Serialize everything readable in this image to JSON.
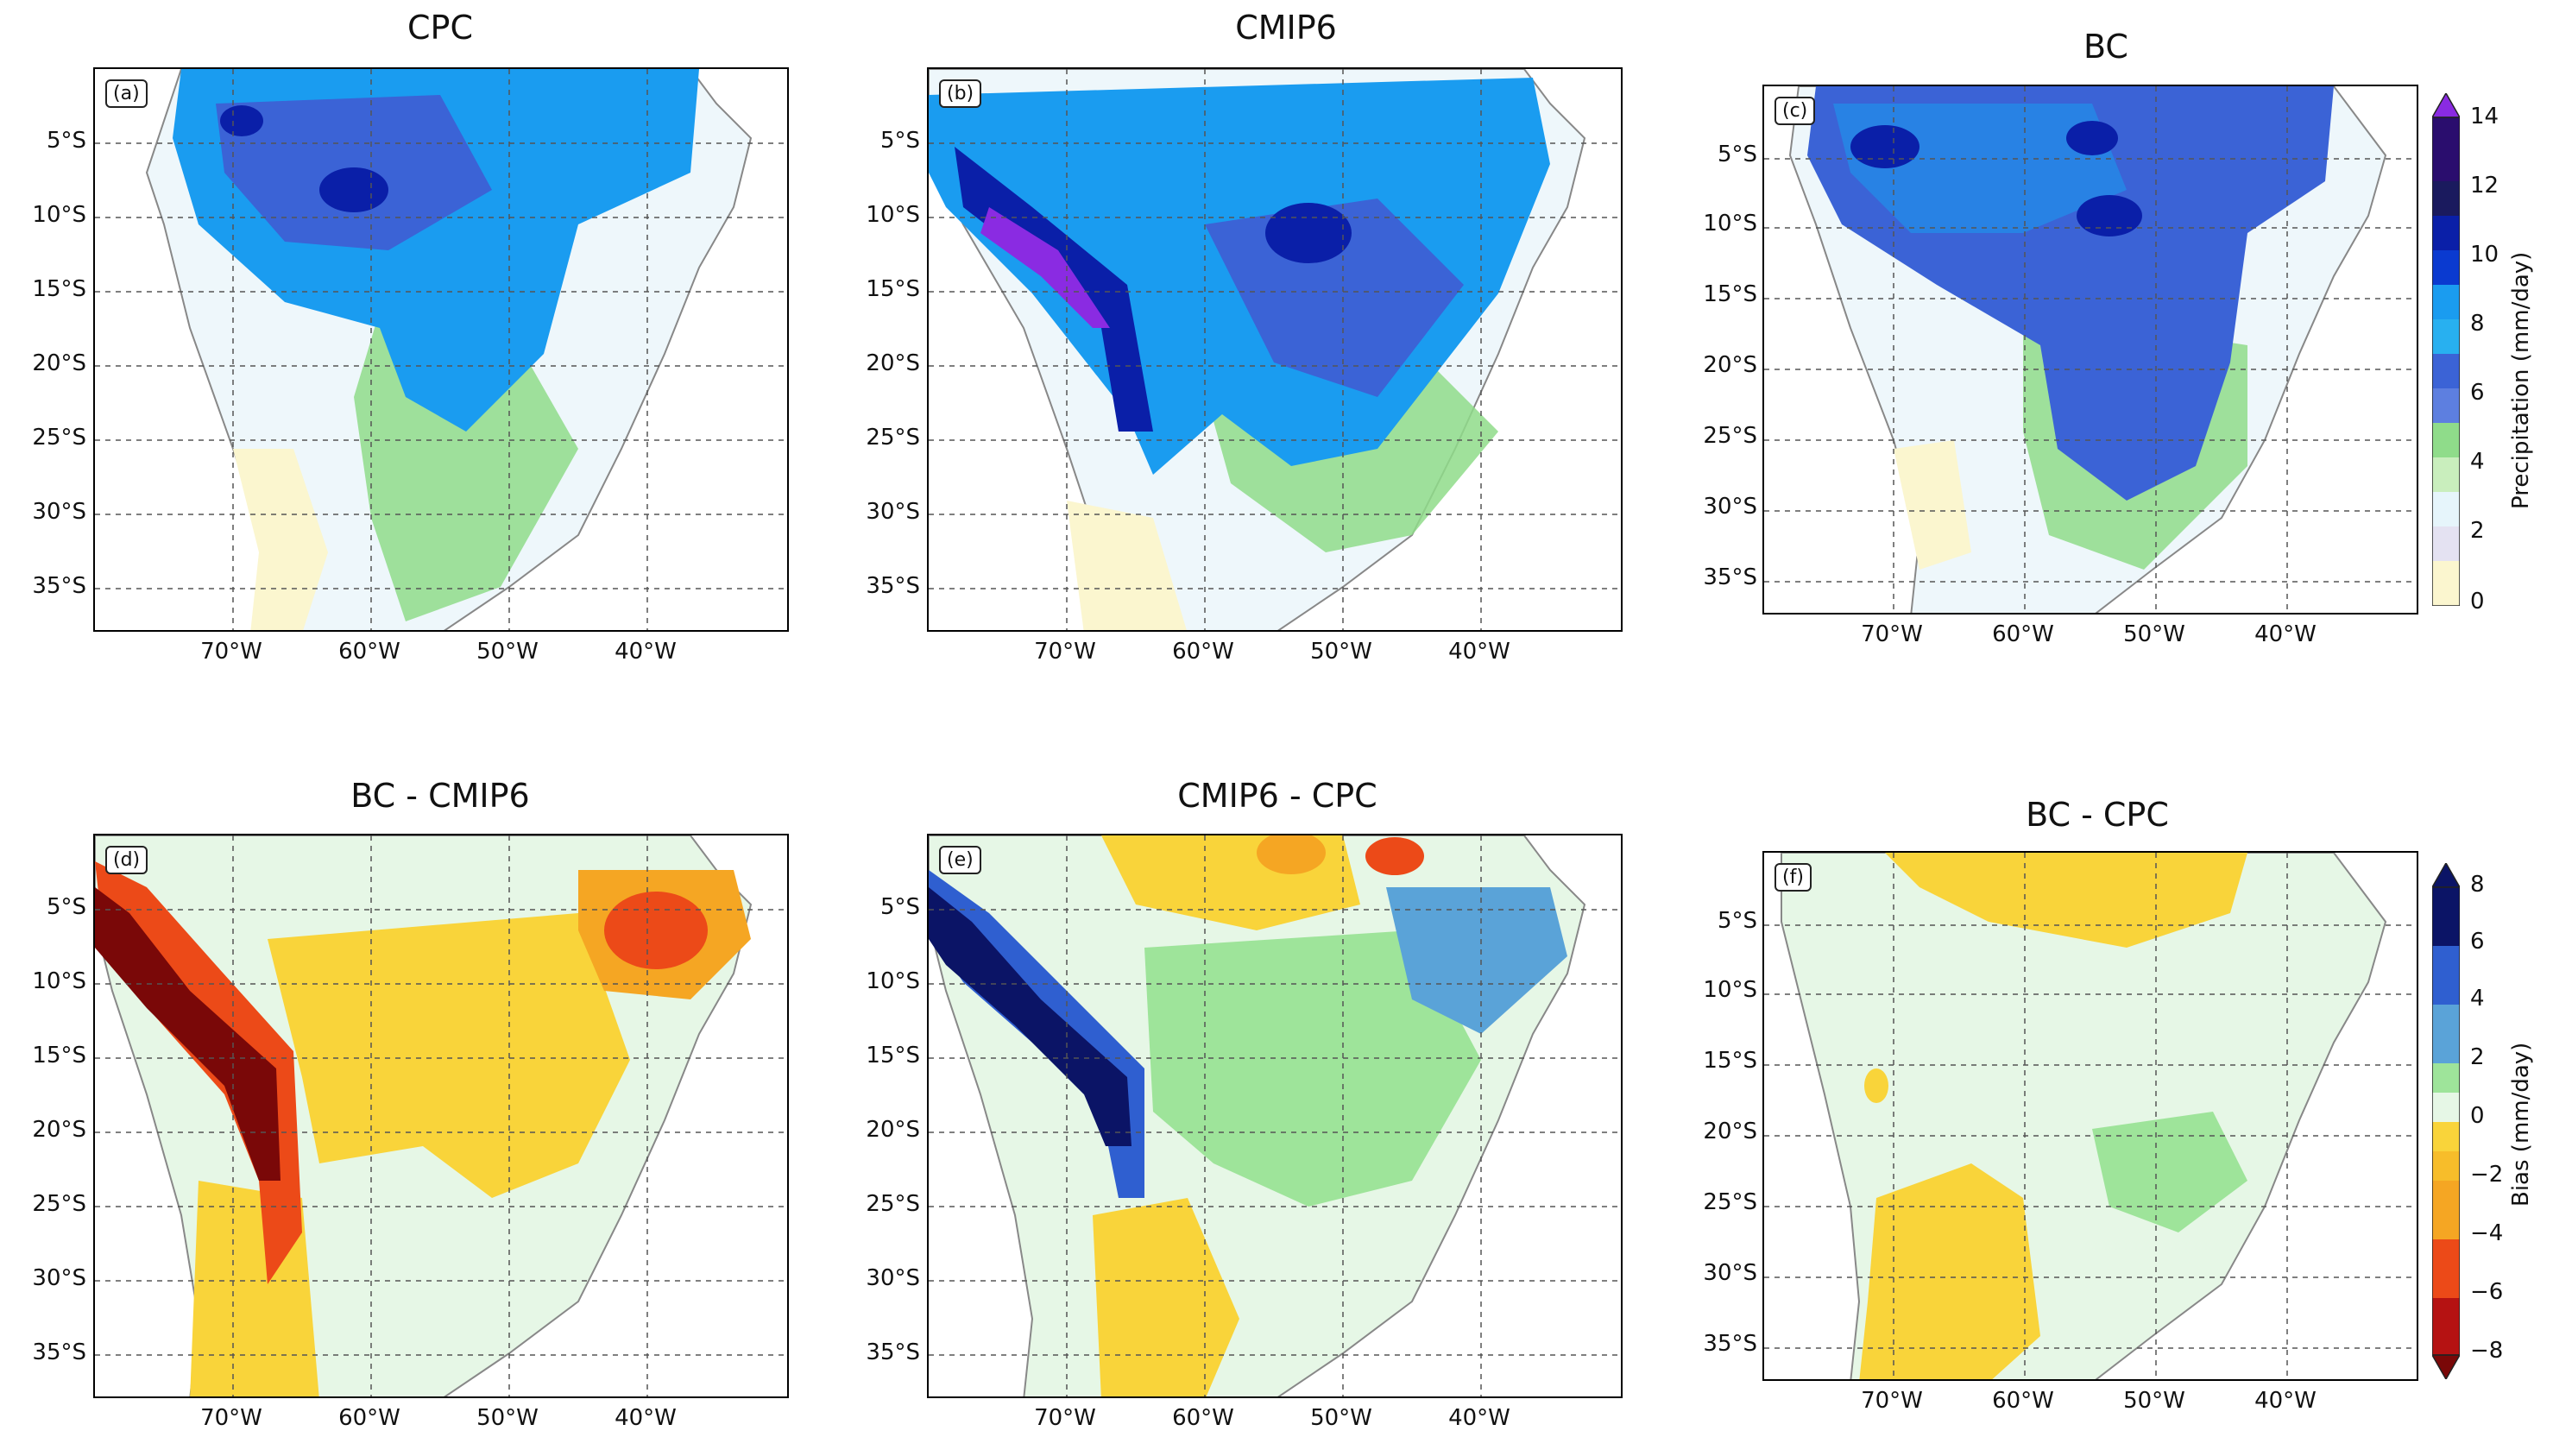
{
  "panels": [
    {
      "title": "CPC",
      "tag": "(a)"
    },
    {
      "title": "CMIP6",
      "tag": "(b)"
    },
    {
      "title": "BC",
      "tag": "(c)"
    },
    {
      "title": "BC - CMIP6",
      "tag": "(d)"
    },
    {
      "title": "CMIP6 - CPC",
      "tag": "(e)"
    },
    {
      "title": "BC - CPC",
      "tag": "(f)"
    }
  ],
  "lat_labels": [
    "5°S",
    "10°S",
    "15°S",
    "20°S",
    "25°S",
    "30°S",
    "35°S"
  ],
  "lon_labels": [
    "70°W",
    "60°W",
    "50°W",
    "40°W"
  ],
  "precip_colorbar": {
    "label": "Precipitation (mm/day)",
    "ticks": [
      "0",
      "2",
      "4",
      "6",
      "8",
      "10",
      "12",
      "14"
    ],
    "colors": [
      "#fbf6cf",
      "#e4e2f2",
      "#e6f5fb",
      "#8fdc8a",
      "#3b63d6",
      "#1a9cf0",
      "#0a1fa8",
      "#2a0d6e",
      "#8a2be2"
    ]
  },
  "bias_colorbar": {
    "label": "Bias (mm/day)",
    "ticks": [
      "8",
      "6",
      "4",
      "2",
      "0",
      "−2",
      "−4",
      "−6",
      "−8"
    ],
    "colors": [
      "#0b1466",
      "#2f5fd0",
      "#5aa3d8",
      "#9ee49a",
      "#e6f7e6",
      "#f9d43a",
      "#f5a623",
      "#ec4a18",
      "#b51212",
      "#7a0808"
    ]
  },
  "colors": {
    "ocean": "#ffffff",
    "land_light": "#e8f6fb",
    "wet_blue": "#2c88ec",
    "wet_dark": "#0b2fb5",
    "border_grey": "#8a8a8a"
  }
}
